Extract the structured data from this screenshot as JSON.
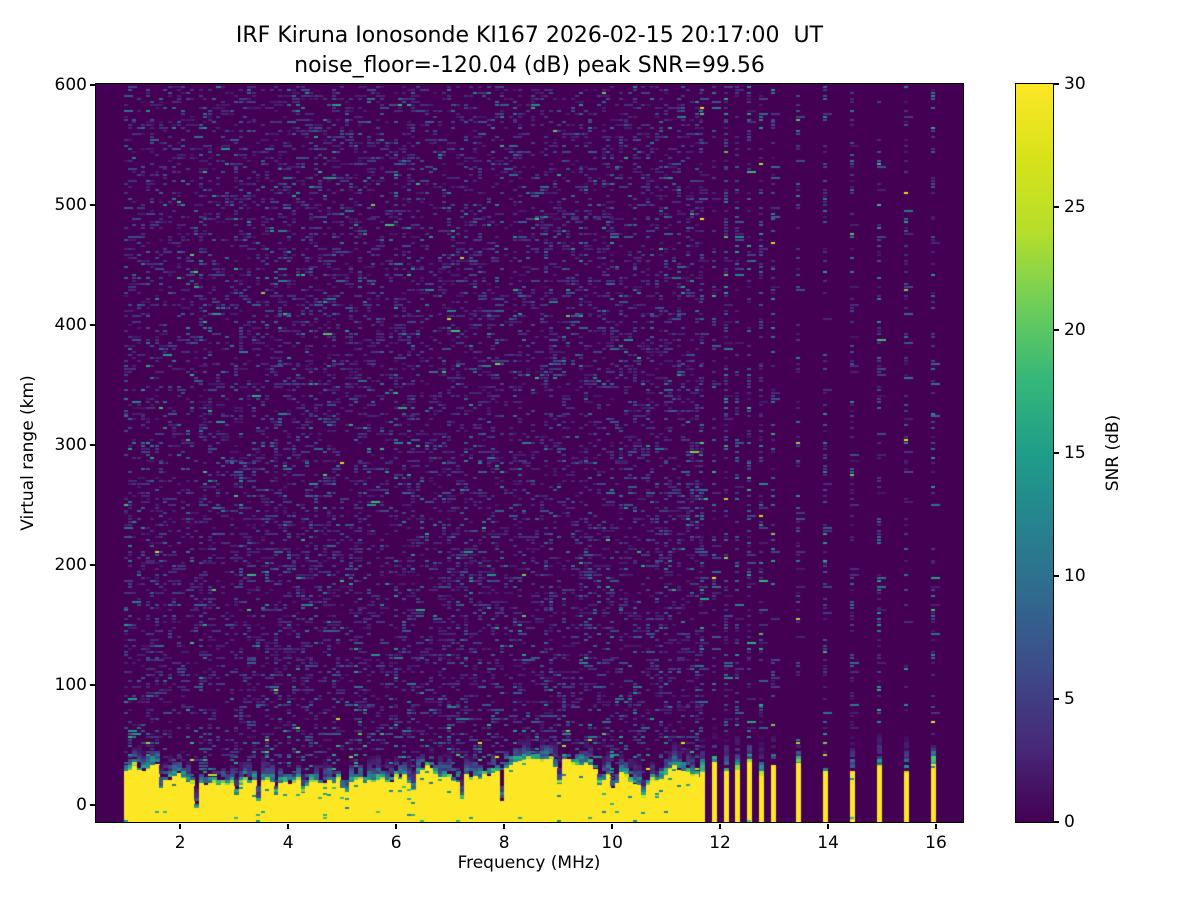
{
  "chart_data": {
    "type": "heatmap",
    "title": "IRF Kiruna Ionosonde KI167 2026-02-15 20:17:00  UT",
    "subtitle": "noise_floor=-120.04 (dB) peak SNR=99.56",
    "xlabel": "Frequency (MHz)",
    "ylabel": "Virtual range (km)",
    "colorbar_label": "SNR (dB)",
    "xlim": [
      0.44,
      16.5
    ],
    "ylim": [
      -14.2,
      600.8
    ],
    "xticks": [
      2,
      4,
      6,
      8,
      10,
      12,
      14,
      16
    ],
    "yticks": [
      0,
      100,
      200,
      300,
      400,
      500,
      600
    ],
    "colorbar_ticks": [
      0,
      5,
      10,
      15,
      20,
      25,
      30
    ],
    "clim": [
      0,
      30
    ],
    "colormap": "viridis",
    "colormap_stops": [
      "#440154",
      "#482878",
      "#3e4989",
      "#31688e",
      "#26828e",
      "#1f9e89",
      "#35b779",
      "#6ece58",
      "#b5de2b",
      "#d8e219",
      "#fde725"
    ],
    "noise_floor_db": -120.04,
    "peak_snr_db": 99.56,
    "sweep": {
      "start_mhz": 0.95,
      "continuous_end_mhz": 11.65,
      "fine_start_mhz": 11.67,
      "fine_step_mhz": 0.22,
      "fine_end_mhz": 13.0,
      "coarse_freqs_mhz": [
        13.45,
        13.95,
        14.45,
        14.95,
        15.45,
        15.95
      ]
    },
    "ground_echo": {
      "solid_top_km_min": 17,
      "solid_top_km_max": 38,
      "transition_top_km_max": 60,
      "notch_freqs_mhz": [
        1.67,
        2.3,
        3.05,
        3.44,
        3.75,
        4.3,
        5.05,
        6.3,
        7.2,
        7.95,
        9.0,
        9.8,
        10.05,
        10.6
      ],
      "notch_width_mhz": 0.07
    },
    "noise_texture": {
      "mean_db_background": 3.1,
      "mean_db_columns": 4.6,
      "visible_threshold_db": 1.6
    }
  }
}
